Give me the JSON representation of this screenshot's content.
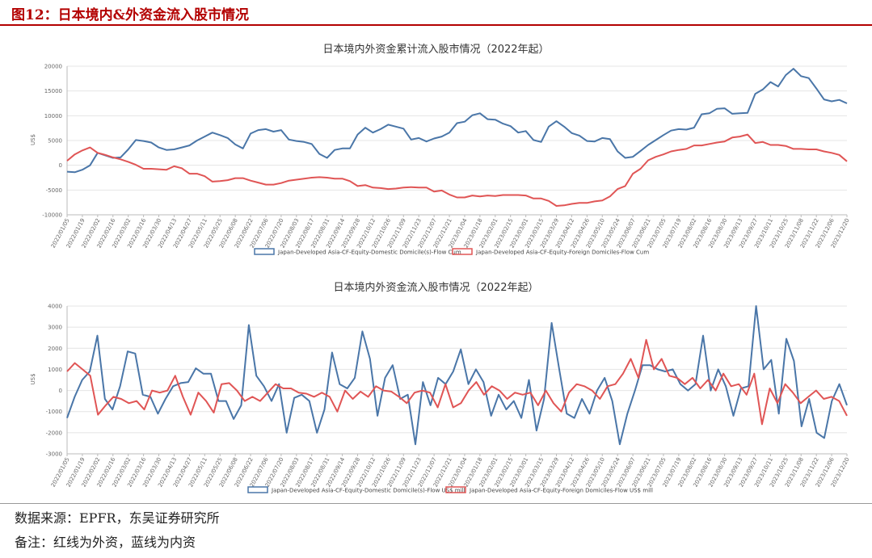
{
  "figure_title": "图12：日本境内&外资金流入股市情况",
  "source_note": "数据来源：EPFR，东吴证券研究所",
  "remark_note": "备注：红线为外资，蓝线为内资",
  "colors": {
    "domestic": "#4a76a8",
    "foreign": "#e05555",
    "accent": "#b30000"
  },
  "chart_data": [
    {
      "type": "line",
      "title": "日本境内外资金累计流入股市情况（2022年起）",
      "ylabel": "US$",
      "ylim": [
        -10000,
        20000
      ],
      "yticks": [
        -10000,
        -5000,
        0,
        5000,
        10000,
        15000,
        20000
      ],
      "tick_labels": [
        "2022/01/05",
        "2022/01/19",
        "2022/02/02",
        "2022/02/16",
        "2022/03/02",
        "2022/03/16",
        "2022/03/30",
        "2022/04/13",
        "2022/04/27",
        "2022/05/11",
        "2022/05/25",
        "2022/06/08",
        "2022/06/22",
        "2022/07/06",
        "2022/07/20",
        "2022/08/03",
        "2022/08/17",
        "2022/08/31",
        "2022/09/14",
        "2022/09/28",
        "2022/10/12",
        "2022/10/26",
        "2022/11/09",
        "2022/11/23",
        "2022/12/07",
        "2022/12/21",
        "2023/01/04",
        "2023/01/18",
        "2023/02/01",
        "2023/02/15",
        "2023/03/01",
        "2023/03/15",
        "2023/03/29",
        "2023/04/12",
        "2023/04/26",
        "2023/05/10",
        "2023/05/24",
        "2023/06/07",
        "2023/06/21",
        "2023/07/05",
        "2023/07/19",
        "2023/08/02",
        "2023/08/16",
        "2023/08/30",
        "2023/09/13",
        "2023/09/27",
        "2023/10/11",
        "2023/10/25",
        "2023/11/08",
        "2023/11/22",
        "2023/12/06",
        "2023/12/20"
      ],
      "series": [
        {
          "name": "Japan-Developed Asia-CF-Equity-Domestic Domicile(s)-Flow Cum",
          "color": "#4a76a8",
          "values": [
            -1300,
            -1400,
            -900,
            0,
            2500,
            2000,
            1500,
            1600,
            3200,
            5100,
            4900,
            4600,
            3600,
            3100,
            3200,
            3600,
            4000,
            5000,
            5800,
            6600,
            6100,
            5500,
            4200,
            3400,
            6400,
            7100,
            7300,
            6800,
            7100,
            5200,
            4900,
            4700,
            4300,
            2300,
            1500,
            3100,
            3400,
            3400,
            6200,
            7600,
            6600,
            7300,
            8200,
            7800,
            7400,
            5200,
            5500,
            4800,
            5400,
            5800,
            6600,
            8500,
            8800,
            10100,
            10500,
            9300,
            9200,
            8400,
            7900,
            6600,
            6900,
            5100,
            4700,
            7800,
            8900,
            7800,
            6500,
            6000,
            4900,
            4800,
            5500,
            5300,
            2800,
            1500,
            1700,
            2900,
            4100,
            5100,
            6100,
            7000,
            7300,
            7200,
            7600,
            10300,
            10500,
            11400,
            11500,
            10400,
            10500,
            10600,
            14400,
            15300,
            16800,
            15900,
            18200,
            19500,
            18000,
            17600,
            15500,
            13300,
            12900,
            13200,
            12500
          ]
        },
        {
          "name": "Japan-Developed Asia-CF-Equity-Foreign Domiciles-Flow Cum",
          "color": "#e05555",
          "values": [
            900,
            2200,
            3000,
            3600,
            2500,
            2100,
            1600,
            1200,
            700,
            100,
            -700,
            -700,
            -800,
            -900,
            -200,
            -600,
            -1700,
            -1700,
            -2200,
            -3300,
            -3200,
            -3000,
            -2600,
            -2600,
            -3100,
            -3500,
            -3900,
            -3900,
            -3600,
            -3100,
            -2900,
            -2700,
            -2500,
            -2400,
            -2500,
            -2700,
            -2700,
            -3200,
            -4200,
            -4000,
            -4500,
            -4600,
            -4800,
            -4700,
            -4500,
            -4400,
            -4500,
            -4500,
            -5300,
            -5100,
            -5900,
            -6500,
            -6500,
            -6100,
            -6300,
            -6100,
            -6200,
            -6000,
            -6000,
            -6000,
            -6100,
            -6700,
            -6700,
            -7200,
            -8200,
            -8100,
            -7800,
            -7600,
            -7600,
            -7300,
            -7100,
            -6300,
            -4800,
            -4200,
            -1700,
            -700,
            1000,
            1700,
            2200,
            2800,
            3100,
            3300,
            4000,
            4000,
            4300,
            4600,
            4800,
            5600,
            5800,
            6200,
            4500,
            4700,
            4100,
            4100,
            3900,
            3300,
            3300,
            3200,
            3200,
            2800,
            2500,
            2100,
            800
          ]
        }
      ],
      "legend_position": "bottom",
      "grid": true
    },
    {
      "type": "line",
      "title": "日本境内外资金流入股市情况（2022年起）",
      "ylabel": "US$",
      "ylim": [
        -3000,
        4000
      ],
      "yticks": [
        -3000,
        -2000,
        -1000,
        0,
        1000,
        2000,
        3000,
        4000
      ],
      "tick_labels": [
        "2022/01/05",
        "2022/01/19",
        "2022/02/02",
        "2022/02/16",
        "2022/03/02",
        "2022/03/16",
        "2022/03/30",
        "2022/04/13",
        "2022/04/27",
        "2022/05/11",
        "2022/05/25",
        "2022/06/08",
        "2022/06/22",
        "2022/07/06",
        "2022/07/20",
        "2022/08/03",
        "2022/08/17",
        "2022/08/31",
        "2022/09/14",
        "2022/09/28",
        "2022/10/12",
        "2022/10/26",
        "2022/11/09",
        "2022/11/23",
        "2022/12/07",
        "2022/12/21",
        "2023/01/04",
        "2023/01/18",
        "2023/02/01",
        "2023/02/15",
        "2023/03/01",
        "2023/03/15",
        "2023/03/29",
        "2023/04/12",
        "2023/04/26",
        "2023/05/10",
        "2023/05/24",
        "2023/06/07",
        "2023/06/21",
        "2023/07/05",
        "2023/07/19",
        "2023/08/02",
        "2023/08/16",
        "2023/08/30",
        "2023/09/13",
        "2023/09/27",
        "2023/10/11",
        "2023/10/25",
        "2023/11/08",
        "2023/11/22",
        "2023/12/06",
        "2023/12/20"
      ],
      "series": [
        {
          "name": "Japan-Developed Asia-CF-Equity-Domestic Domicile(s)-Flow US$ mill",
          "color": "#4a76a8",
          "values": [
            -1300,
            -300,
            500,
            900,
            2600,
            -400,
            -900,
            200,
            1850,
            1750,
            -200,
            -300,
            -1100,
            -400,
            200,
            350,
            400,
            1050,
            800,
            800,
            -500,
            -500,
            -1350,
            -700,
            3100,
            700,
            200,
            -500,
            300,
            -2000,
            -350,
            -200,
            -500,
            -2000,
            -900,
            1800,
            300,
            100,
            600,
            2800,
            1500,
            -1200,
            600,
            1200,
            -400,
            -200,
            -2550,
            400,
            -700,
            600,
            300,
            900,
            1950,
            300,
            1000,
            400,
            -1200,
            -200,
            -900,
            -500,
            -1300,
            500,
            -1900,
            -400,
            3200,
            1000,
            -1100,
            -1300,
            -400,
            -1100,
            0,
            600,
            -500,
            -2550,
            -1100,
            0,
            1200,
            1200,
            1000,
            900,
            1000,
            300,
            0,
            300,
            2600,
            0,
            1000,
            200,
            -1200,
            100,
            200,
            4000,
            1000,
            1450,
            -1100,
            2450,
            1400,
            -1700,
            -400,
            -2000,
            -2250,
            -500,
            300,
            -700
          ]
        },
        {
          "name": "Japan-Developed Asia-CF-Equity-Foreign Domiciles-Flow US$ mill",
          "color": "#e05555",
          "values": [
            900,
            1300,
            1000,
            700,
            -1150,
            -700,
            -300,
            -400,
            -600,
            -500,
            -900,
            0,
            -100,
            0,
            700,
            -300,
            -1150,
            -100,
            -500,
            -1050,
            300,
            350,
            0,
            -500,
            -300,
            -500,
            -100,
            300,
            100,
            100,
            -100,
            -150,
            -300,
            -100,
            -300,
            -1000,
            0,
            -400,
            -50,
            -300,
            200,
            0,
            -50,
            -300,
            -600,
            -100,
            0,
            -100,
            -800,
            300,
            -800,
            -600,
            0,
            400,
            -200,
            200,
            0,
            -400,
            -100,
            -200,
            -100,
            -700,
            0,
            -600,
            -1000,
            -100,
            300,
            200,
            0,
            -400,
            200,
            300,
            800,
            1500,
            600,
            2400,
            1000,
            1500,
            700,
            600,
            300,
            600,
            100,
            500,
            0,
            800,
            200,
            300,
            -200,
            800,
            -1600,
            100,
            -600,
            300,
            -100,
            -600,
            -300,
            0,
            -400,
            -300,
            -500,
            -1200
          ]
        }
      ],
      "legend_position": "bottom",
      "grid": true
    }
  ]
}
